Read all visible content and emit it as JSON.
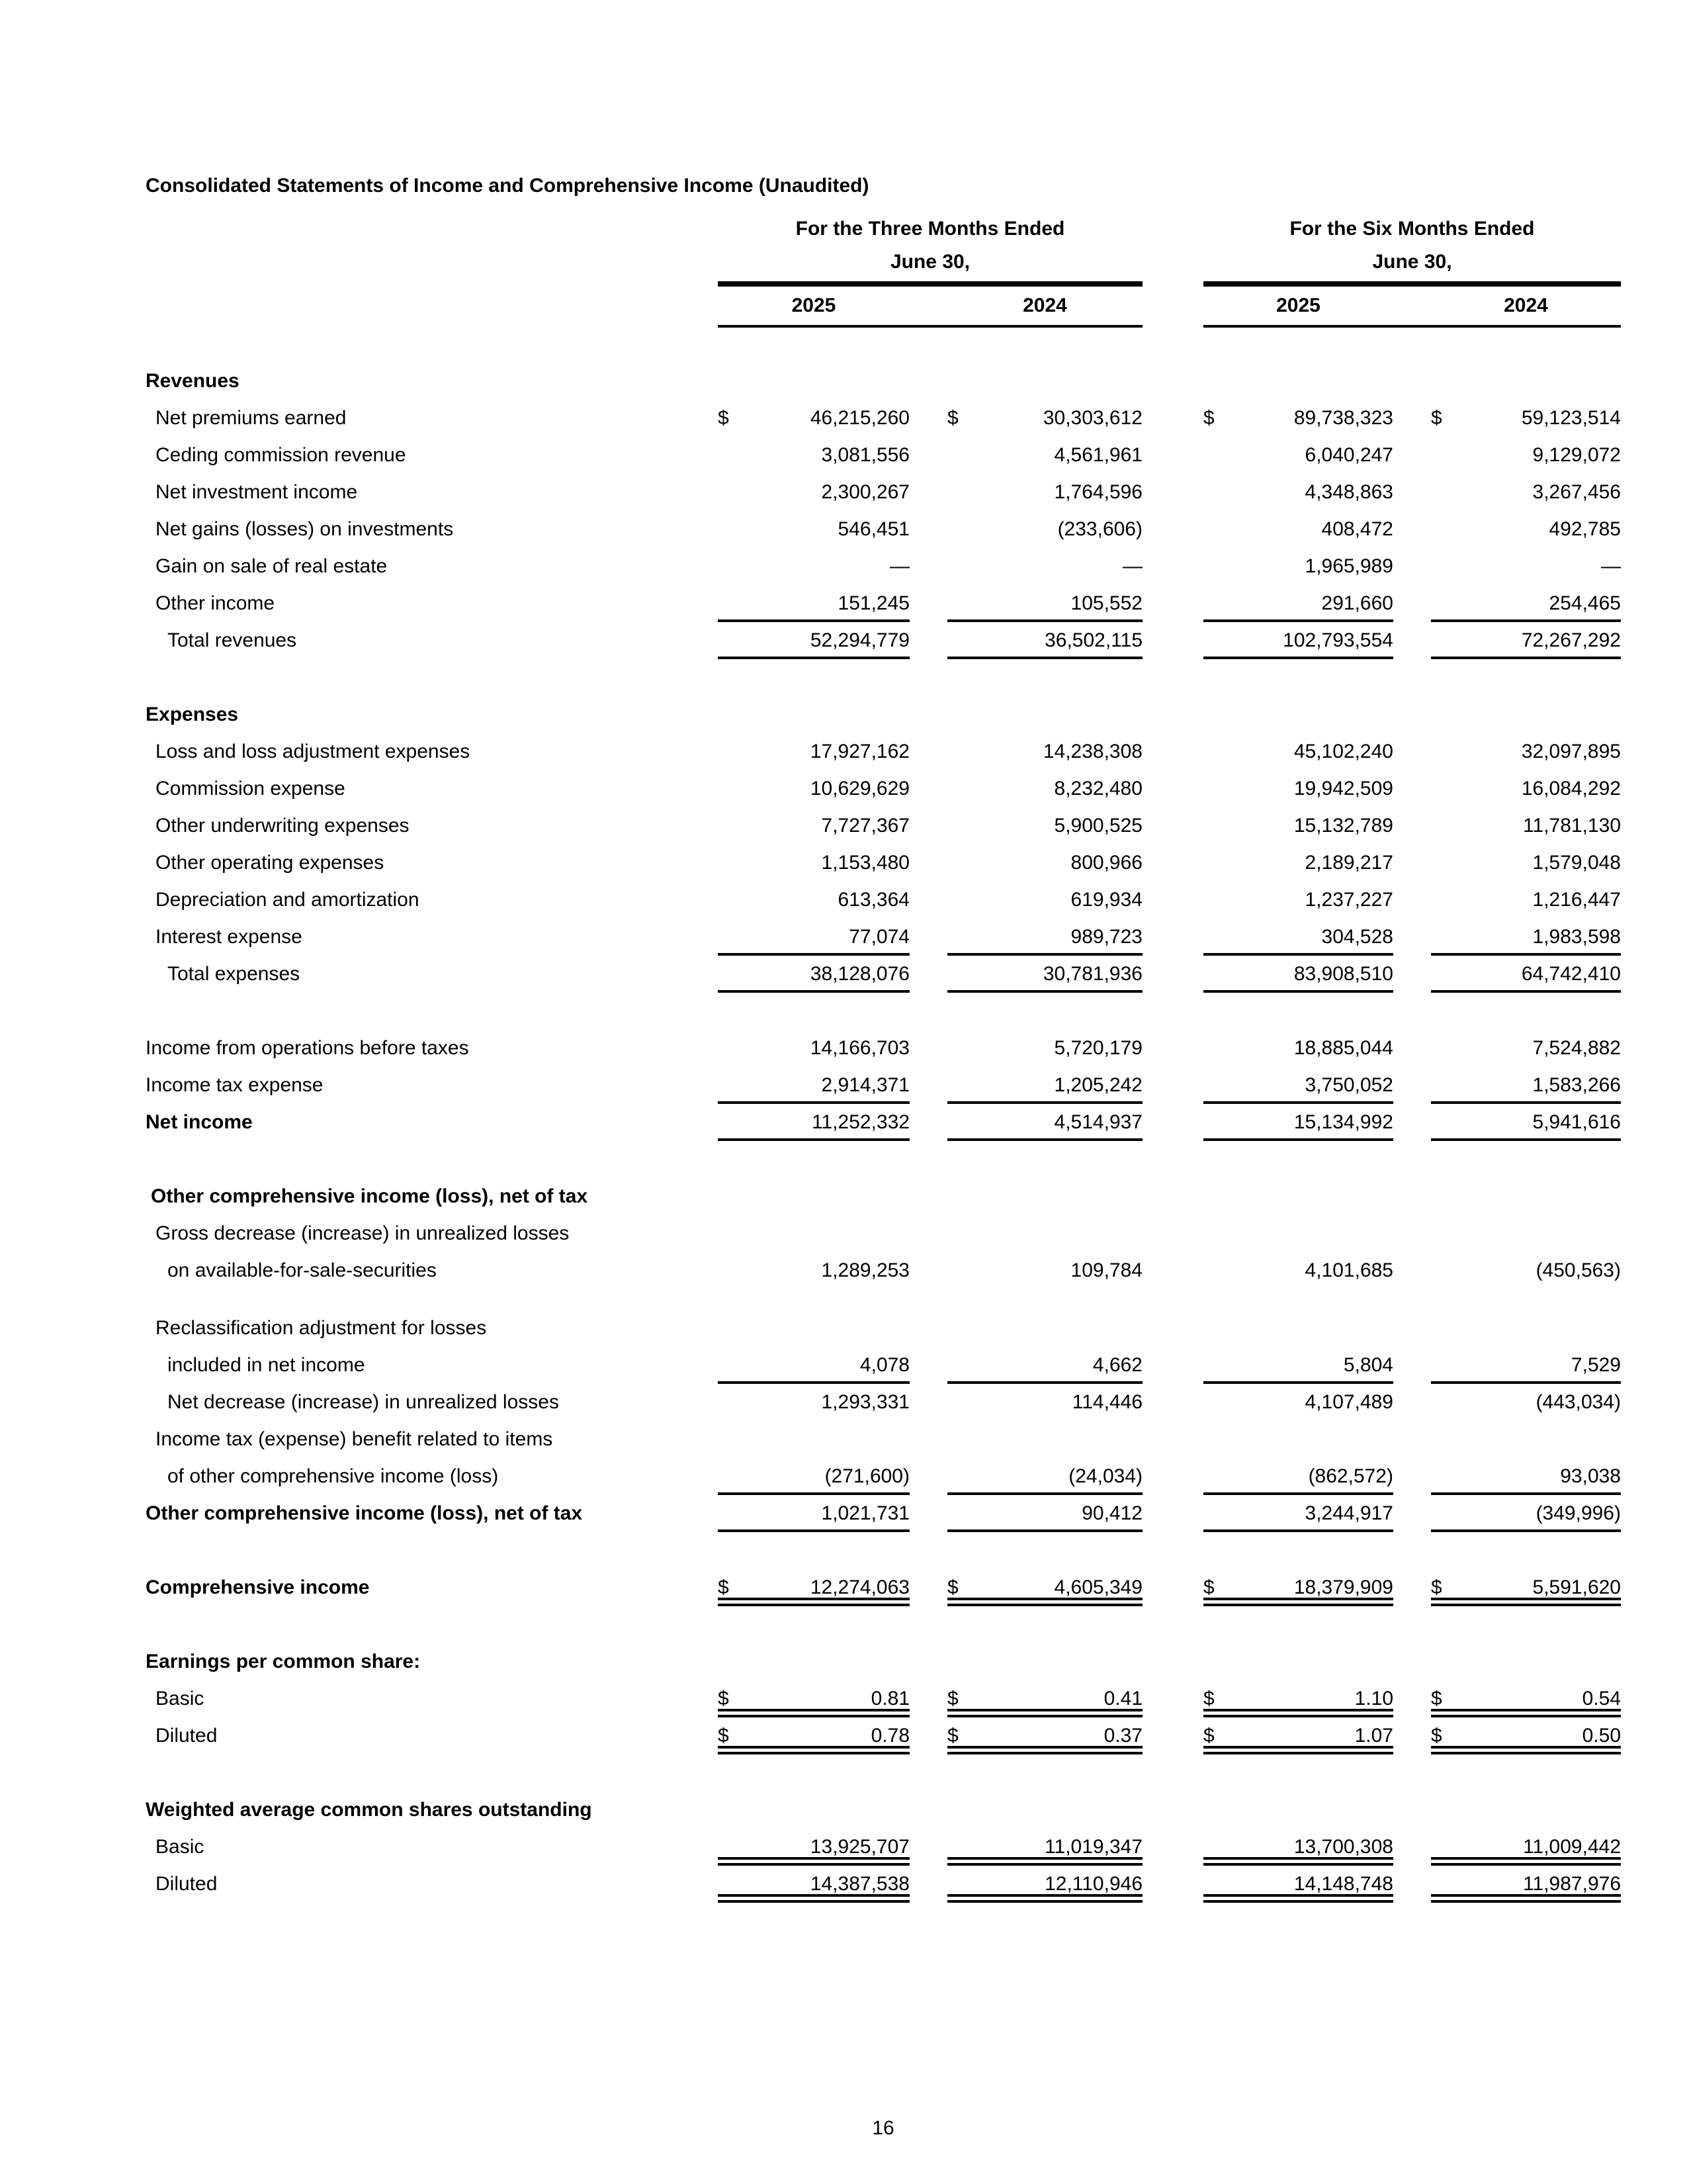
{
  "page": {
    "title": "Consolidated Statements of Income and Comprehensive Income (Unaudited)",
    "page_number": "16"
  },
  "table": {
    "currency_symbol": "$",
    "groups": [
      {
        "title": "For the Three Months Ended",
        "subtitle": "June 30,",
        "years": [
          "2025",
          "2024"
        ]
      },
      {
        "title": "For the Six Months Ended",
        "subtitle": "June 30,",
        "years": [
          "2025",
          "2024"
        ]
      }
    ],
    "rows": [
      {
        "type": "spacer",
        "size": "large"
      },
      {
        "label": "Revenues",
        "bold": true,
        "indent": 0,
        "values": null
      },
      {
        "label": "Net premiums earned",
        "indent": 1,
        "dollar": true,
        "values": [
          "46,215,260",
          "30,303,612",
          "89,738,323",
          "59,123,514"
        ]
      },
      {
        "label": "Ceding commission revenue",
        "indent": 1,
        "values": [
          "3,081,556",
          "4,561,961",
          "6,040,247",
          "9,129,072"
        ]
      },
      {
        "label": "Net investment income",
        "indent": 1,
        "values": [
          "2,300,267",
          "1,764,596",
          "4,348,863",
          "3,267,456"
        ]
      },
      {
        "label": "Net gains (losses) on investments",
        "indent": 1,
        "values": [
          "546,451",
          "(233,606)",
          "408,472",
          "492,785"
        ]
      },
      {
        "label": "Gain on sale of real estate",
        "indent": 1,
        "values": [
          "—",
          "—",
          "1,965,989",
          "—"
        ]
      },
      {
        "label": "Other income",
        "indent": 1,
        "values": [
          "151,245",
          "105,552",
          "291,660",
          "254,465"
        ],
        "underline": "single"
      },
      {
        "label": "Total revenues",
        "indent": 2,
        "values": [
          "52,294,779",
          "36,502,115",
          "102,793,554",
          "72,267,292"
        ],
        "underline": "single"
      },
      {
        "type": "spacer",
        "size": "normal"
      },
      {
        "label": "Expenses",
        "bold": true,
        "indent": 0,
        "values": null
      },
      {
        "label": "Loss and loss adjustment expenses",
        "indent": 1,
        "values": [
          "17,927,162",
          "14,238,308",
          "45,102,240",
          "32,097,895"
        ]
      },
      {
        "label": "Commission expense",
        "indent": 1,
        "values": [
          "10,629,629",
          "8,232,480",
          "19,942,509",
          "16,084,292"
        ]
      },
      {
        "label": "Other underwriting expenses",
        "indent": 1,
        "values": [
          "7,727,367",
          "5,900,525",
          "15,132,789",
          "11,781,130"
        ]
      },
      {
        "label": "Other operating expenses",
        "indent": 1,
        "values": [
          "1,153,480",
          "800,966",
          "2,189,217",
          "1,579,048"
        ]
      },
      {
        "label": "Depreciation and amortization",
        "indent": 1,
        "values": [
          "613,364",
          "619,934",
          "1,237,227",
          "1,216,447"
        ]
      },
      {
        "label": "Interest expense",
        "indent": 1,
        "values": [
          "77,074",
          "989,723",
          "304,528",
          "1,983,598"
        ],
        "underline": "single"
      },
      {
        "label": "Total expenses",
        "indent": 2,
        "values": [
          "38,128,076",
          "30,781,936",
          "83,908,510",
          "64,742,410"
        ],
        "underline": "single"
      },
      {
        "type": "spacer",
        "size": "normal"
      },
      {
        "label": "Income from operations before taxes",
        "indent": 0,
        "values": [
          "14,166,703",
          "5,720,179",
          "18,885,044",
          "7,524,882"
        ]
      },
      {
        "label": "Income tax expense",
        "indent": 0,
        "values": [
          "2,914,371",
          "1,205,242",
          "3,750,052",
          "1,583,266"
        ],
        "underline": "single"
      },
      {
        "label": "Net income",
        "bold": true,
        "indent": 0,
        "values": [
          "11,252,332",
          "4,514,937",
          "15,134,992",
          "5,941,616"
        ],
        "underline": "single"
      },
      {
        "type": "spacer",
        "size": "normal"
      },
      {
        "label": "Other comprehensive income (loss), net of tax",
        "bold": true,
        "indent": 0,
        "pad": true,
        "values": null
      },
      {
        "label": "Gross decrease (increase) in unrealized losses",
        "indent": 1,
        "values": null
      },
      {
        "label": "on available-for-sale-securities",
        "indent": 2,
        "values": [
          "1,289,253",
          "109,784",
          "4,101,685",
          "(450,563)"
        ]
      },
      {
        "type": "spacer",
        "size": "small"
      },
      {
        "label": "Reclassification adjustment for losses",
        "indent": 1,
        "values": null
      },
      {
        "label": "included in net income",
        "indent": 2,
        "values": [
          "4,078",
          "4,662",
          "5,804",
          "7,529"
        ],
        "underline": "single"
      },
      {
        "label": "Net decrease (increase) in unrealized losses",
        "indent": 2,
        "values": [
          "1,293,331",
          "114,446",
          "4,107,489",
          "(443,034)"
        ]
      },
      {
        "label": "Income tax (expense) benefit related to items",
        "indent": 1,
        "values": null
      },
      {
        "label": "of other comprehensive income (loss)",
        "indent": 2,
        "values": [
          "(271,600)",
          "(24,034)",
          "(862,572)",
          "93,038"
        ],
        "underline": "single"
      },
      {
        "label": "Other comprehensive income (loss), net of tax",
        "bold": true,
        "indent": 0,
        "values": [
          "1,021,731",
          "90,412",
          "3,244,917",
          "(349,996)"
        ],
        "underline": "single"
      },
      {
        "type": "spacer",
        "size": "normal"
      },
      {
        "label": "Comprehensive income",
        "bold": true,
        "indent": 0,
        "dollar": true,
        "values": [
          "12,274,063",
          "4,605,349",
          "18,379,909",
          "5,591,620"
        ],
        "underline": "double"
      },
      {
        "type": "spacer",
        "size": "normal"
      },
      {
        "label": "Earnings per common share:",
        "bold": true,
        "indent": 0,
        "values": null
      },
      {
        "label": "Basic",
        "indent": 1,
        "dollar": true,
        "values": [
          "0.81",
          "0.41",
          "1.10",
          "0.54"
        ],
        "underline": "double"
      },
      {
        "label": "Diluted",
        "indent": 1,
        "dollar": true,
        "values": [
          "0.78",
          "0.37",
          "1.07",
          "0.50"
        ],
        "underline": "double"
      },
      {
        "type": "spacer",
        "size": "normal"
      },
      {
        "label": "Weighted average common shares outstanding",
        "bold": true,
        "indent": 0,
        "values": null
      },
      {
        "label": "Basic",
        "indent": 1,
        "values": [
          "13,925,707",
          "11,019,347",
          "13,700,308",
          "11,009,442"
        ],
        "underline": "double"
      },
      {
        "label": "Diluted",
        "indent": 1,
        "values": [
          "14,387,538",
          "12,110,946",
          "14,148,748",
          "11,987,976"
        ],
        "underline": "double"
      }
    ]
  }
}
